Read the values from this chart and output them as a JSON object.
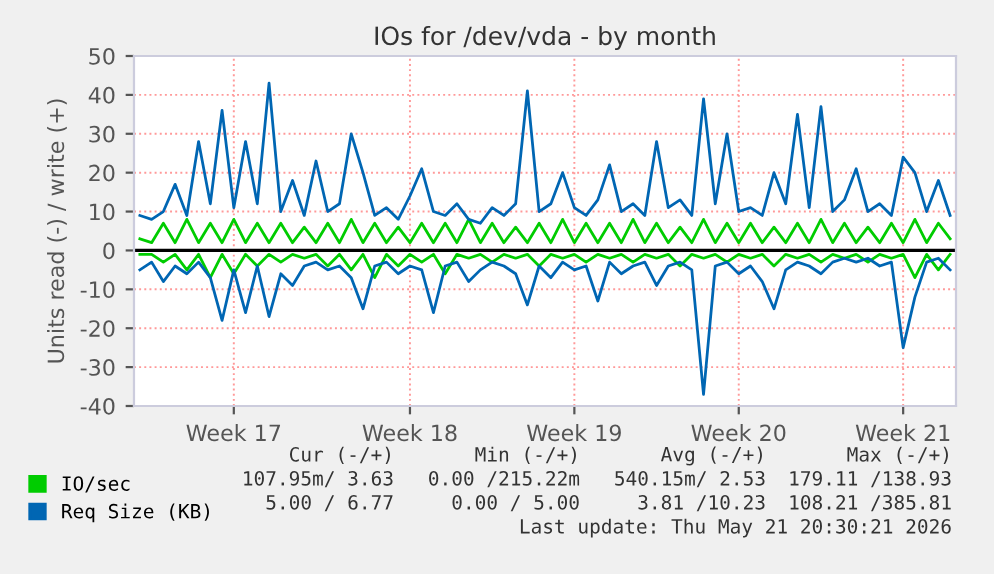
{
  "chart_data": {
    "type": "line",
    "title": "IOs for /dev/vda - by month",
    "ylabel": "Units read (-) / write (+)",
    "categories": [
      null,
      null,
      null,
      null,
      null,
      null,
      null,
      null,
      "Week 17",
      null,
      null,
      null,
      null,
      null,
      null,
      null,
      null,
      null,
      null,
      null,
      null,
      null,
      null,
      "Week 18",
      null,
      null,
      null,
      null,
      null,
      null,
      null,
      null,
      null,
      null,
      null,
      null,
      null,
      "Week 19",
      null,
      null,
      null,
      null,
      null,
      null,
      null,
      null,
      null,
      null,
      null,
      null,
      null,
      "Week 20",
      null,
      null,
      null,
      null,
      null,
      null,
      null,
      null,
      null,
      null,
      null,
      null,
      null,
      "Week 21",
      null,
      null,
      null,
      null
    ],
    "series": [
      {
        "name": "IO/sec",
        "color": "#00cc00",
        "values": [
          3,
          2,
          7,
          2,
          8,
          2,
          7,
          2,
          8,
          2,
          7,
          2,
          7,
          2,
          6,
          2,
          7,
          2,
          8,
          2,
          7,
          2,
          6,
          2,
          7,
          2,
          7,
          2,
          8,
          2,
          7,
          2,
          6,
          2,
          7,
          2,
          8,
          2,
          7,
          2,
          7,
          2,
          8,
          2,
          7,
          2,
          6,
          2,
          8,
          2,
          7,
          2,
          7,
          2,
          6,
          2,
          7,
          2,
          8,
          2,
          7,
          2,
          6,
          2,
          7,
          2,
          8,
          2,
          7,
          3
        ]
      },
      {
        "color": "#00cc00",
        "values": [
          -1,
          -1,
          -3,
          -1,
          -5,
          -1,
          -7,
          -1,
          -6,
          -1,
          -4,
          -1,
          -3,
          -1,
          -2,
          -1,
          -4,
          -1,
          -5,
          -1,
          -7,
          -1,
          -4,
          -1,
          -3,
          -1,
          -6,
          -1,
          -2,
          -1,
          -3,
          -1,
          -2,
          -1,
          -4,
          -1,
          -2,
          -1,
          -3,
          -1,
          -2,
          -1,
          -3,
          -1,
          -2,
          -1,
          -4,
          -1,
          -2,
          -1,
          -3,
          -1,
          -2,
          -1,
          -4,
          -1,
          -2,
          -1,
          -3,
          -1,
          -2,
          -1,
          -3,
          -1,
          -2,
          -1,
          -7,
          -1,
          -5,
          -1
        ]
      },
      {
        "name": "Req Size (KB)",
        "color": "#0066b3",
        "values": [
          9,
          8,
          10,
          17,
          9,
          28,
          12,
          36,
          11,
          28,
          12,
          43,
          10,
          18,
          9,
          23,
          10,
          12,
          30,
          20,
          9,
          11,
          8,
          14,
          21,
          10,
          9,
          12,
          8,
          7,
          11,
          9,
          12,
          41,
          10,
          12,
          20,
          11,
          9,
          13,
          22,
          10,
          12,
          9,
          28,
          11,
          13,
          9,
          39,
          12,
          30,
          10,
          11,
          9,
          20,
          12,
          35,
          11,
          37,
          10,
          13,
          21,
          10,
          12,
          9,
          24,
          20,
          10,
          18,
          9
        ]
      },
      {
        "color": "#0066b3",
        "values": [
          -5,
          -3,
          -8,
          -4,
          -6,
          -3,
          -7,
          -18,
          -5,
          -16,
          -4,
          -17,
          -6,
          -9,
          -4,
          -3,
          -5,
          -4,
          -7,
          -15,
          -4,
          -3,
          -6,
          -4,
          -5,
          -16,
          -4,
          -3,
          -8,
          -5,
          -3,
          -4,
          -6,
          -14,
          -4,
          -7,
          -3,
          -5,
          -4,
          -13,
          -3,
          -6,
          -4,
          -3,
          -9,
          -4,
          -3,
          -5,
          -37,
          -4,
          -3,
          -6,
          -4,
          -8,
          -15,
          -5,
          -3,
          -4,
          -6,
          -3,
          -2,
          -3,
          -2,
          -4,
          -3,
          -25,
          -12,
          -3,
          -2,
          -5
        ]
      }
    ],
    "ylim": [
      -40,
      50
    ],
    "yticks": [
      -40,
      -30,
      -20,
      -10,
      0,
      10,
      20,
      30,
      40,
      50
    ],
    "ref_lines": [
      {
        "axis": "y",
        "value": 0,
        "color": "#000000"
      }
    ],
    "grid": true,
    "legend": "bottom left",
    "marker": "none",
    "line_style": "solid",
    "annotations": [
      "Cur (-/+)",
      "Min (-/+)",
      "Avg (-/+)",
      "Max (-/+)",
      "107.95m/ 3.63",
      "0.00 /215.22m",
      "540.15m/ 2.53",
      "179.11 /138.93",
      "5.00 / 6.77",
      "0.00 / 5.00",
      "3.81 /10.23",
      "108.21 /385.81",
      "Last update: Thu May 21 20:30:21 2026"
    ]
  }
}
